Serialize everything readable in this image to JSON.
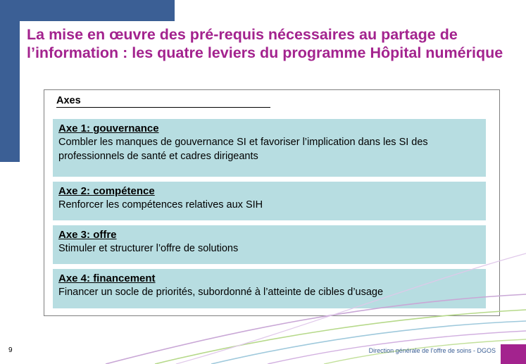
{
  "slide": {
    "title": "La mise en œuvre des pré-requis nécessaires au partage de l’information : les quatre leviers du programme Hôpital numérique",
    "axes_heading": "Axes",
    "axes": [
      {
        "heading": "Axe 1: gouvernance",
        "text": "Combler les manques de gouvernance SI et favoriser l’implication dans les SI des professionnels de santé et cadres dirigeants"
      },
      {
        "heading": "Axe 2: compétence",
        "text": "Renforcer les compétences relatives aux SIH"
      },
      {
        "heading": "Axe 3: offre",
        "text": "Stimuler et structurer l’offre de solutions"
      },
      {
        "heading": "Axe 4: financement",
        "text": "Financer un socle de priorités, subordonné à l’atteinte de cibles d’usage"
      }
    ],
    "page_number": "9",
    "footer_text": "Direction générale de l’offre de soins - DGOS"
  },
  "colors": {
    "title": "#a3238e",
    "band": "#3b5f95",
    "box_fill": "#b7dde1"
  }
}
